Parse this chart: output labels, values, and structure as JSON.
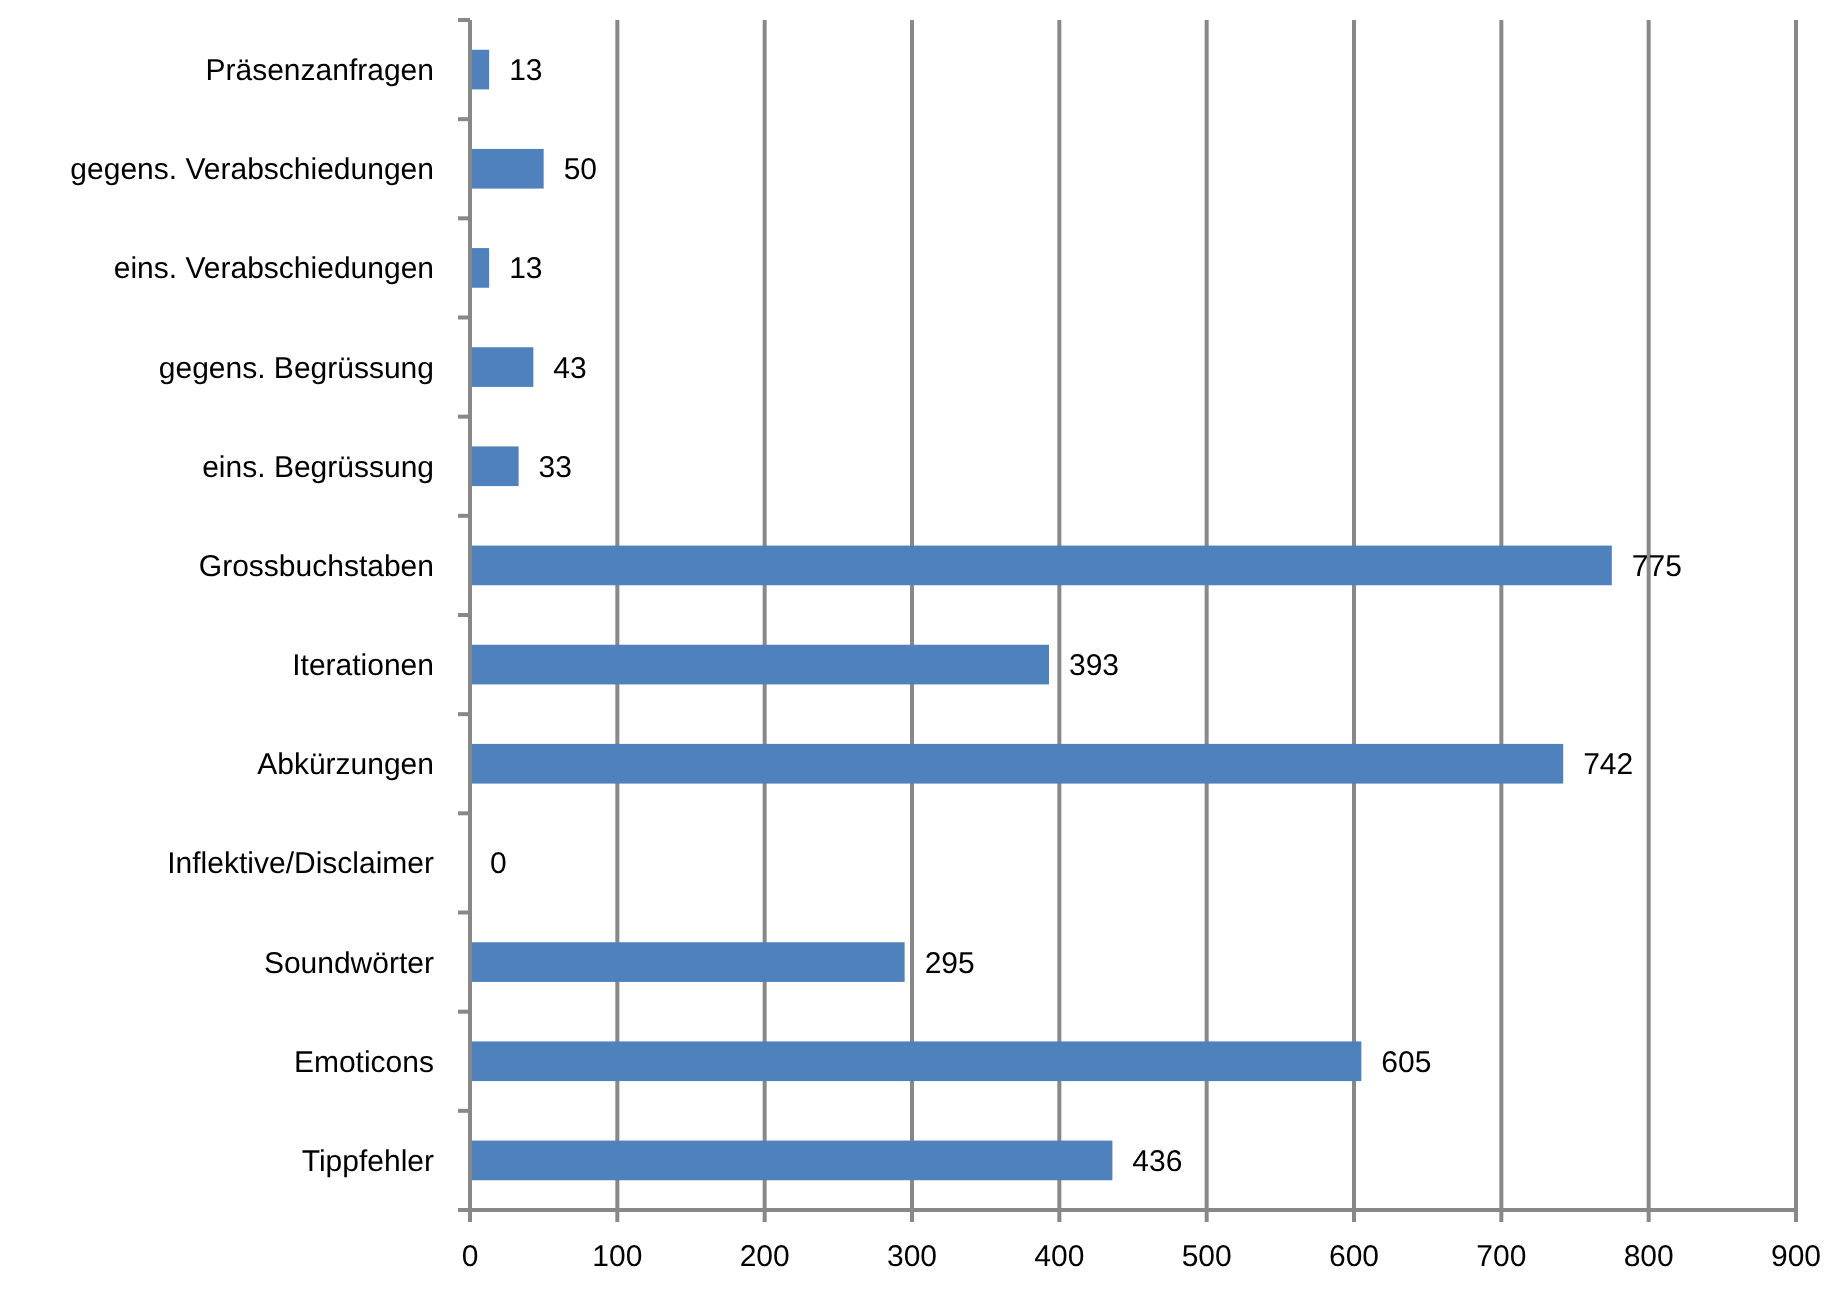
{
  "chart_data": {
    "type": "bar",
    "orientation": "horizontal",
    "categories": [
      "Präsenzanfragen",
      "gegens. Verabschiedungen",
      "eins. Verabschiedungen",
      "gegens. Begrüssung",
      "eins. Begrüssung",
      "Grossbuchstaben",
      "Iterationen",
      "Abkürzungen",
      "Inflektive/Disclaimer",
      "Soundwörter",
      "Emoticons",
      "Tippfehler"
    ],
    "values": [
      13,
      50,
      13,
      43,
      33,
      775,
      393,
      742,
      0,
      295,
      605,
      436
    ],
    "color": "#4f81bd",
    "xlim": [
      0,
      900
    ],
    "xticks": [
      0,
      100,
      200,
      300,
      400,
      500,
      600,
      700,
      800,
      900
    ],
    "grid": "x",
    "data_labels": true
  }
}
